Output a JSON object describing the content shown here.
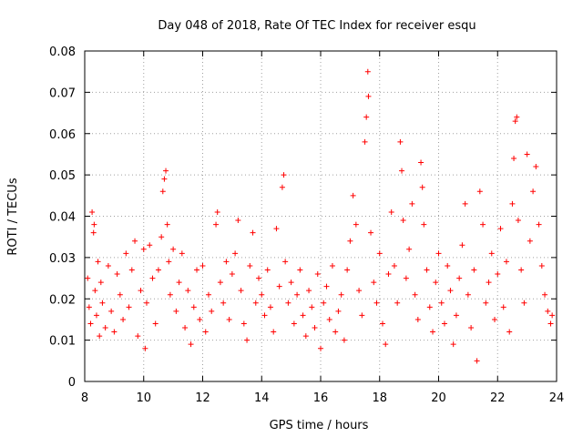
{
  "chart_data": {
    "type": "scatter",
    "title": "Day 048 of 2018, Rate Of TEC Index for receiver esqu",
    "xlabel": "GPS time / hours",
    "ylabel": "ROTI / TECUs",
    "xlim": [
      8,
      24
    ],
    "ylim": [
      0,
      0.08
    ],
    "xticks": [
      "8",
      "10",
      "12",
      "14",
      "16",
      "18",
      "20",
      "22",
      "24"
    ],
    "xtick_values": [
      8,
      10,
      12,
      14,
      16,
      18,
      20,
      22,
      24
    ],
    "yticks": [
      "0",
      "0.01",
      "0.02",
      "0.03",
      "0.04",
      "0.05",
      "0.06",
      "0.07",
      "0.08"
    ],
    "ytick_values": [
      0,
      0.01,
      0.02,
      0.03,
      0.04,
      0.05,
      0.06,
      0.07,
      0.08
    ],
    "grid": true,
    "marker": "+",
    "series": [
      {
        "name": "ROTI",
        "color": "#ff0000",
        "points": [
          [
            8.1,
            0.025
          ],
          [
            8.15,
            0.018
          ],
          [
            8.2,
            0.014
          ],
          [
            8.25,
            0.041
          ],
          [
            8.3,
            0.036
          ],
          [
            8.32,
            0.038
          ],
          [
            8.35,
            0.022
          ],
          [
            8.4,
            0.016
          ],
          [
            8.45,
            0.029
          ],
          [
            8.5,
            0.011
          ],
          [
            8.55,
            0.024
          ],
          [
            8.6,
            0.019
          ],
          [
            8.7,
            0.013
          ],
          [
            8.8,
            0.028
          ],
          [
            8.9,
            0.017
          ],
          [
            9.0,
            0.012
          ],
          [
            9.1,
            0.026
          ],
          [
            9.2,
            0.021
          ],
          [
            9.3,
            0.015
          ],
          [
            9.4,
            0.031
          ],
          [
            9.5,
            0.018
          ],
          [
            9.6,
            0.027
          ],
          [
            9.7,
            0.034
          ],
          [
            9.8,
            0.011
          ],
          [
            9.9,
            0.022
          ],
          [
            10.0,
            0.032
          ],
          [
            10.05,
            0.008
          ],
          [
            10.1,
            0.019
          ],
          [
            10.2,
            0.033
          ],
          [
            10.3,
            0.025
          ],
          [
            10.4,
            0.014
          ],
          [
            10.5,
            0.027
          ],
          [
            10.6,
            0.035
          ],
          [
            10.65,
            0.046
          ],
          [
            10.7,
            0.049
          ],
          [
            10.75,
            0.051
          ],
          [
            10.8,
            0.038
          ],
          [
            10.85,
            0.029
          ],
          [
            10.9,
            0.021
          ],
          [
            11.0,
            0.032
          ],
          [
            11.1,
            0.017
          ],
          [
            11.2,
            0.024
          ],
          [
            11.3,
            0.031
          ],
          [
            11.4,
            0.013
          ],
          [
            11.5,
            0.022
          ],
          [
            11.6,
            0.009
          ],
          [
            11.7,
            0.018
          ],
          [
            11.8,
            0.027
          ],
          [
            11.9,
            0.015
          ],
          [
            12.0,
            0.028
          ],
          [
            12.1,
            0.012
          ],
          [
            12.2,
            0.021
          ],
          [
            12.3,
            0.017
          ],
          [
            12.45,
            0.038
          ],
          [
            12.5,
            0.041
          ],
          [
            12.6,
            0.024
          ],
          [
            12.7,
            0.019
          ],
          [
            12.8,
            0.029
          ],
          [
            12.9,
            0.015
          ],
          [
            13.0,
            0.026
          ],
          [
            13.1,
            0.031
          ],
          [
            13.2,
            0.039
          ],
          [
            13.3,
            0.022
          ],
          [
            13.4,
            0.014
          ],
          [
            13.5,
            0.01
          ],
          [
            13.6,
            0.028
          ],
          [
            13.7,
            0.036
          ],
          [
            13.8,
            0.019
          ],
          [
            13.9,
            0.025
          ],
          [
            14.0,
            0.021
          ],
          [
            14.1,
            0.016
          ],
          [
            14.2,
            0.027
          ],
          [
            14.3,
            0.018
          ],
          [
            14.4,
            0.012
          ],
          [
            14.5,
            0.037
          ],
          [
            14.6,
            0.023
          ],
          [
            14.7,
            0.047
          ],
          [
            14.75,
            0.05
          ],
          [
            14.8,
            0.029
          ],
          [
            14.9,
            0.019
          ],
          [
            15.0,
            0.024
          ],
          [
            15.1,
            0.014
          ],
          [
            15.2,
            0.021
          ],
          [
            15.3,
            0.027
          ],
          [
            15.4,
            0.016
          ],
          [
            15.5,
            0.011
          ],
          [
            15.6,
            0.022
          ],
          [
            15.7,
            0.018
          ],
          [
            15.8,
            0.013
          ],
          [
            15.9,
            0.026
          ],
          [
            16.0,
            0.008
          ],
          [
            16.1,
            0.019
          ],
          [
            16.2,
            0.023
          ],
          [
            16.3,
            0.015
          ],
          [
            16.4,
            0.028
          ],
          [
            16.5,
            0.012
          ],
          [
            16.6,
            0.017
          ],
          [
            16.7,
            0.021
          ],
          [
            16.8,
            0.01
          ],
          [
            16.9,
            0.027
          ],
          [
            17.0,
            0.034
          ],
          [
            17.1,
            0.045
          ],
          [
            17.2,
            0.038
          ],
          [
            17.3,
            0.022
          ],
          [
            17.4,
            0.016
          ],
          [
            17.5,
            0.058
          ],
          [
            17.55,
            0.064
          ],
          [
            17.6,
            0.075
          ],
          [
            17.62,
            0.069
          ],
          [
            17.7,
            0.036
          ],
          [
            17.8,
            0.024
          ],
          [
            17.9,
            0.019
          ],
          [
            18.0,
            0.031
          ],
          [
            18.1,
            0.014
          ],
          [
            18.2,
            0.009
          ],
          [
            18.3,
            0.026
          ],
          [
            18.4,
            0.041
          ],
          [
            18.5,
            0.028
          ],
          [
            18.6,
            0.019
          ],
          [
            18.7,
            0.058
          ],
          [
            18.75,
            0.051
          ],
          [
            18.8,
            0.039
          ],
          [
            18.9,
            0.025
          ],
          [
            19.0,
            0.032
          ],
          [
            19.1,
            0.043
          ],
          [
            19.2,
            0.021
          ],
          [
            19.3,
            0.015
          ],
          [
            19.4,
            0.053
          ],
          [
            19.45,
            0.047
          ],
          [
            19.5,
            0.038
          ],
          [
            19.6,
            0.027
          ],
          [
            19.7,
            0.018
          ],
          [
            19.8,
            0.012
          ],
          [
            19.9,
            0.024
          ],
          [
            20.0,
            0.031
          ],
          [
            20.1,
            0.019
          ],
          [
            20.2,
            0.014
          ],
          [
            20.3,
            0.028
          ],
          [
            20.4,
            0.022
          ],
          [
            20.5,
            0.009
          ],
          [
            20.6,
            0.016
          ],
          [
            20.7,
            0.025
          ],
          [
            20.8,
            0.033
          ],
          [
            20.9,
            0.043
          ],
          [
            21.0,
            0.021
          ],
          [
            21.1,
            0.013
          ],
          [
            21.2,
            0.027
          ],
          [
            21.3,
            0.005
          ],
          [
            21.4,
            0.046
          ],
          [
            21.5,
            0.038
          ],
          [
            21.6,
            0.019
          ],
          [
            21.7,
            0.024
          ],
          [
            21.8,
            0.031
          ],
          [
            21.9,
            0.015
          ],
          [
            22.0,
            0.026
          ],
          [
            22.1,
            0.037
          ],
          [
            22.2,
            0.018
          ],
          [
            22.3,
            0.029
          ],
          [
            22.4,
            0.012
          ],
          [
            22.5,
            0.043
          ],
          [
            22.55,
            0.054
          ],
          [
            22.6,
            0.063
          ],
          [
            22.65,
            0.064
          ],
          [
            22.7,
            0.039
          ],
          [
            22.8,
            0.027
          ],
          [
            22.9,
            0.019
          ],
          [
            23.0,
            0.055
          ],
          [
            23.1,
            0.034
          ],
          [
            23.2,
            0.046
          ],
          [
            23.3,
            0.052
          ],
          [
            23.4,
            0.038
          ],
          [
            23.5,
            0.028
          ],
          [
            23.6,
            0.021
          ],
          [
            23.7,
            0.017
          ],
          [
            23.8,
            0.014
          ],
          [
            23.85,
            0.016
          ]
        ]
      }
    ]
  }
}
